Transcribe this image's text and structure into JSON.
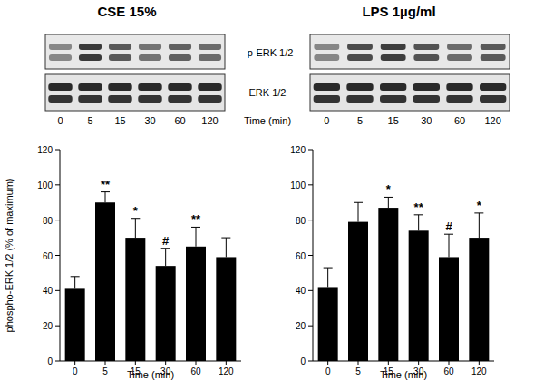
{
  "chart_data": [
    {
      "type": "bar",
      "title": "CSE 15%",
      "categories": [
        "0",
        "5",
        "15",
        "30",
        "60",
        "120"
      ],
      "values": [
        41,
        90,
        70,
        54,
        65,
        59
      ],
      "errors": [
        7,
        6,
        11,
        10,
        11,
        11
      ],
      "annotations": [
        null,
        "**",
        "*",
        "#",
        "**",
        null
      ],
      "xlabel": "Time (min)",
      "ylabel": "phospho-ERK 1/2 (% of maximum)",
      "ylim": [
        0,
        120
      ],
      "yticks": [
        0,
        20,
        40,
        60,
        80,
        100,
        120
      ],
      "color": "#000000",
      "grid": false
    },
    {
      "type": "bar",
      "title": "LPS 1µg/ml",
      "categories": [
        "0",
        "5",
        "15",
        "30",
        "60",
        "120"
      ],
      "values": [
        42,
        79,
        87,
        74,
        59,
        70
      ],
      "errors": [
        11,
        11,
        6,
        9,
        13,
        14
      ],
      "annotations": [
        null,
        null,
        "*",
        "**",
        "#",
        "*"
      ],
      "xlabel": "Time (min)",
      "ylim": [
        0,
        120
      ],
      "yticks": [
        0,
        20,
        40,
        60,
        80,
        100,
        120
      ],
      "color": "#000000",
      "grid": false
    }
  ],
  "blot": {
    "rows": [
      "p-ERK 1/2",
      "ERK 1/2"
    ],
    "axis_label": "Time (min)"
  }
}
